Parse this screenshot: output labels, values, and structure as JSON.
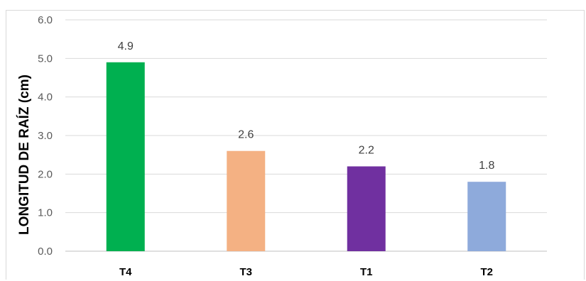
{
  "chart_data": {
    "type": "bar",
    "categories": [
      "T4",
      "T3",
      "T1",
      "T2"
    ],
    "values": [
      4.9,
      2.6,
      2.2,
      1.8
    ],
    "data_labels": [
      "4.9",
      "2.6",
      "2.2",
      "1.8"
    ],
    "bar_colors": [
      "#00b050",
      "#f4b183",
      "#7030a0",
      "#8eaadb"
    ],
    "title": "",
    "xlabel": "",
    "ylabel": "LONGITUD DE RAÍZ (cm)",
    "ylim": [
      0,
      6
    ],
    "yticks": [
      "0.0",
      "1.0",
      "2.0",
      "3.0",
      "4.0",
      "5.0",
      "6.0"
    ],
    "grid": true,
    "legend": "none"
  }
}
